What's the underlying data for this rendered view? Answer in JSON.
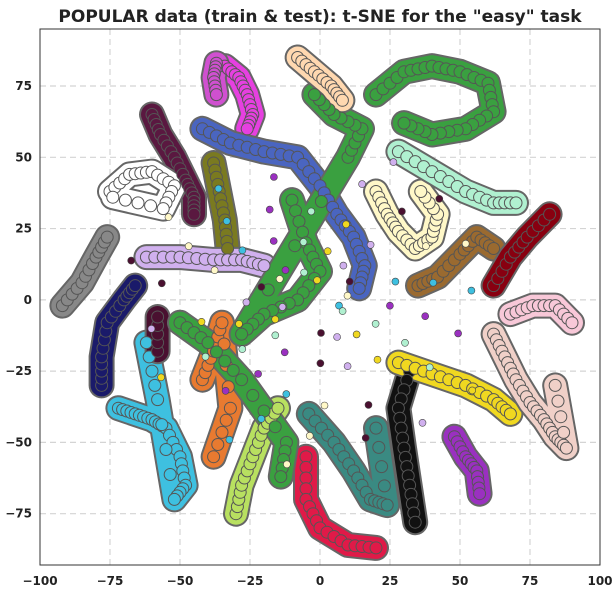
{
  "chart_data": {
    "type": "scatter",
    "title": "POPULAR data (train & test): t-SNE for the \"easy\" task",
    "xlabel": "",
    "ylabel": "",
    "xlim": [
      -100,
      100
    ],
    "ylim": [
      -93,
      95
    ],
    "x_ticks": [
      -100,
      -75,
      -50,
      -25,
      0,
      25,
      50,
      75,
      100
    ],
    "y_ticks": [
      -75,
      -50,
      -25,
      0,
      25,
      50,
      75
    ],
    "x_tick_labels": [
      "−100",
      "−75",
      "−50",
      "−25",
      "0",
      "25",
      "50",
      "75",
      "100"
    ],
    "y_tick_labels": [
      "−75",
      "−50",
      "−25",
      "0",
      "25",
      "50",
      "75"
    ],
    "grid": true,
    "legend": "none",
    "series": [
      {
        "color": "#e640e0",
        "points": [
          [
            -34,
            82
          ],
          [
            -29,
            78
          ],
          [
            -26,
            72
          ],
          [
            -24,
            65
          ],
          [
            -26,
            60
          ]
        ]
      },
      {
        "color": "#d050d0",
        "points": [
          [
            -37,
            83
          ],
          [
            -38,
            78
          ],
          [
            -37,
            72
          ]
        ]
      },
      {
        "color": "#5a1840",
        "points": [
          [
            -60,
            65
          ],
          [
            -57,
            58
          ],
          [
            -52,
            50
          ],
          [
            -48,
            42
          ],
          [
            -45,
            36
          ],
          [
            -45,
            30
          ]
        ]
      },
      {
        "color": "#ffffff",
        "points": [
          [
            -75,
            38
          ],
          [
            -68,
            44
          ],
          [
            -60,
            45
          ],
          [
            -52,
            40
          ],
          [
            -56,
            32
          ],
          [
            -74,
            36
          ]
        ]
      },
      {
        "color": "#888888",
        "points": [
          [
            -92,
            -2
          ],
          [
            -85,
            6
          ],
          [
            -80,
            15
          ],
          [
            -76,
            22
          ]
        ]
      },
      {
        "color": "#4a65c0",
        "points": [
          [
            -42,
            60
          ],
          [
            -32,
            55
          ],
          [
            -20,
            52
          ],
          [
            -8,
            50
          ],
          [
            0,
            40
          ],
          [
            6,
            30
          ],
          [
            12,
            22
          ],
          [
            16,
            12
          ],
          [
            14,
            4
          ]
        ]
      },
      {
        "color": "#7a7a20",
        "points": [
          [
            -38,
            48
          ],
          [
            -36,
            38
          ],
          [
            -34,
            28
          ],
          [
            -33,
            18
          ]
        ]
      },
      {
        "color": "#d0b0ee",
        "points": [
          [
            -62,
            15
          ],
          [
            -50,
            15
          ],
          [
            -38,
            14
          ],
          [
            -28,
            14
          ],
          [
            -20,
            12
          ]
        ]
      },
      {
        "color": "#1a1a6a",
        "points": [
          [
            -78,
            -30
          ],
          [
            -78,
            -20
          ],
          [
            -76,
            -8
          ],
          [
            -70,
            0
          ],
          [
            -66,
            5
          ]
        ]
      },
      {
        "color": "#3ec0e0",
        "points": [
          [
            -72,
            -38
          ],
          [
            -66,
            -40
          ],
          [
            -60,
            -42
          ],
          [
            -55,
            -45
          ],
          [
            -50,
            -55
          ],
          [
            -48,
            -65
          ],
          [
            -52,
            -70
          ],
          [
            -58,
            -35
          ],
          [
            -62,
            -15
          ]
        ]
      },
      {
        "color": "#4a1030",
        "points": [
          [
            -58,
            -18
          ],
          [
            -58,
            -6
          ]
        ]
      },
      {
        "color": "#e87a30",
        "points": [
          [
            -42,
            -28
          ],
          [
            -38,
            -18
          ],
          [
            -35,
            -8
          ],
          [
            -32,
            -38
          ],
          [
            -38,
            -55
          ]
        ]
      },
      {
        "color": "#b8e060",
        "points": [
          [
            -30,
            -75
          ],
          [
            -28,
            -65
          ],
          [
            -24,
            -55
          ],
          [
            -20,
            -45
          ],
          [
            -15,
            -38
          ]
        ]
      },
      {
        "color": "#e01a48",
        "points": [
          [
            -5,
            -55
          ],
          [
            -5,
            -70
          ],
          [
            0,
            -80
          ],
          [
            10,
            -86
          ],
          [
            20,
            -87
          ]
        ]
      },
      {
        "color": "#3a8a82",
        "points": [
          [
            -4,
            -40
          ],
          [
            5,
            -50
          ],
          [
            12,
            -60
          ],
          [
            18,
            -70
          ],
          [
            24,
            -72
          ],
          [
            20,
            -45
          ]
        ]
      },
      {
        "color": "#111111",
        "points": [
          [
            32,
            -25
          ],
          [
            28,
            -38
          ],
          [
            30,
            -52
          ],
          [
            32,
            -65
          ],
          [
            34,
            -78
          ]
        ]
      },
      {
        "color": "#9a30c0",
        "points": [
          [
            48,
            -48
          ],
          [
            52,
            -55
          ],
          [
            56,
            -60
          ],
          [
            57,
            -68
          ]
        ]
      },
      {
        "color": "#f0d820",
        "points": [
          [
            28,
            -22
          ],
          [
            40,
            -26
          ],
          [
            52,
            -30
          ],
          [
            62,
            -35
          ],
          [
            68,
            -40
          ]
        ]
      },
      {
        "color": "#3aa040",
        "points": [
          [
            -10,
            35
          ],
          [
            -5,
            20
          ],
          [
            0,
            10
          ],
          [
            -8,
            0
          ],
          [
            -20,
            -5
          ],
          [
            -28,
            -12
          ],
          [
            10,
            50
          ],
          [
            15,
            60
          ],
          [
            5,
            65
          ],
          [
            -2,
            72
          ]
        ]
      },
      {
        "color": "#3aa040",
        "points": [
          [
            20,
            72
          ],
          [
            30,
            80
          ],
          [
            40,
            82
          ],
          [
            50,
            80
          ],
          [
            60,
            76
          ],
          [
            62,
            66
          ],
          [
            52,
            60
          ],
          [
            40,
            58
          ],
          [
            30,
            62
          ]
        ]
      },
      {
        "color": "#ffd8b0",
        "points": [
          [
            -8,
            85
          ],
          [
            -2,
            80
          ],
          [
            4,
            75
          ],
          [
            8,
            70
          ]
        ]
      },
      {
        "color": "#fff8c8",
        "points": [
          [
            20,
            38
          ],
          [
            24,
            30
          ],
          [
            28,
            24
          ],
          [
            34,
            18
          ],
          [
            40,
            22
          ],
          [
            42,
            30
          ],
          [
            36,
            38
          ]
        ]
      },
      {
        "color": "#b0f0d0",
        "points": [
          [
            28,
            52
          ],
          [
            40,
            45
          ],
          [
            52,
            38
          ],
          [
            62,
            34
          ],
          [
            70,
            34
          ]
        ]
      },
      {
        "color": "#9a6a30",
        "points": [
          [
            35,
            5
          ],
          [
            42,
            8
          ],
          [
            50,
            16
          ],
          [
            56,
            22
          ],
          [
            62,
            18
          ]
        ]
      },
      {
        "color": "#880010",
        "points": [
          [
            62,
            5
          ],
          [
            68,
            15
          ],
          [
            74,
            22
          ],
          [
            82,
            30
          ]
        ]
      },
      {
        "color": "#f8c8d8",
        "points": [
          [
            68,
            -5
          ],
          [
            76,
            -2
          ],
          [
            84,
            -2
          ],
          [
            90,
            -8
          ]
        ]
      },
      {
        "color": "#f0d0c8",
        "points": [
          [
            62,
            -12
          ],
          [
            66,
            -20
          ],
          [
            70,
            -28
          ],
          [
            75,
            -36
          ],
          [
            80,
            -42
          ],
          [
            84,
            -48
          ],
          [
            88,
            -52
          ],
          [
            84,
            -30
          ]
        ]
      },
      {
        "color": "#3aa040",
        "points": [
          [
            -50,
            -8
          ],
          [
            -40,
            -15
          ],
          [
            -28,
            -28
          ],
          [
            -12,
            -50
          ],
          [
            -14,
            -62
          ]
        ]
      }
    ]
  }
}
